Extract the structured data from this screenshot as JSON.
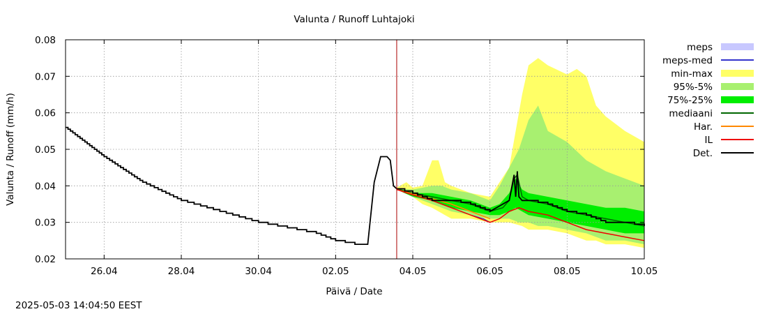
{
  "chart_data": {
    "type": "area",
    "title": "Valunta / Runoff  Luhtajoki",
    "xlabel": "Päivä / Date",
    "ylabel": "Valunta / Runoff (mm/h)",
    "x_range": [
      "2025-04-25T00:00",
      "2025-05-10T00:00"
    ],
    "ylim": [
      0.02,
      0.08
    ],
    "yticks": [
      "0.02",
      "0.03",
      "0.04",
      "0.05",
      "0.06",
      "0.07",
      "0.08"
    ],
    "xticks": [
      {
        "date": "2025-04-26",
        "label": "26.04"
      },
      {
        "date": "2025-04-28",
        "label": "28.04"
      },
      {
        "date": "2025-04-30",
        "label": "30.04"
      },
      {
        "date": "2025-05-02",
        "label": "02.05"
      },
      {
        "date": "2025-05-04",
        "label": "04.05"
      },
      {
        "date": "2025-05-06",
        "label": "06.05"
      },
      {
        "date": "2025-05-08",
        "label": "08.05"
      },
      {
        "date": "2025-05-10",
        "label": "10.05"
      }
    ],
    "grid": true,
    "legend_position": "right",
    "forecast_start": "2025-05-03T14:00",
    "legend": [
      {
        "label": "meps",
        "kind": "box",
        "color": "#c8c8ff"
      },
      {
        "label": "meps-med",
        "kind": "line",
        "color": "#3333cc"
      },
      {
        "label": "min-max",
        "kind": "box",
        "color": "#ffff66"
      },
      {
        "label": "95%-5%",
        "kind": "box",
        "color": "#a8f070"
      },
      {
        "label": "75%-25%",
        "kind": "box",
        "color": "#00ee00"
      },
      {
        "label": "mediaani",
        "kind": "line",
        "color": "#006600"
      },
      {
        "label": "Har.",
        "kind": "line",
        "color": "#ff8800"
      },
      {
        "label": "IL",
        "kind": "line",
        "color": "#ee0000"
      },
      {
        "label": "Det.",
        "kind": "line",
        "color": "#000000"
      }
    ],
    "bands": [
      {
        "name": "min-max",
        "color": "#ffff66",
        "x": [
          "2025-05-03T14:00",
          "2025-05-03T20:00",
          "2025-05-04T00:00",
          "2025-05-04T06:00",
          "2025-05-04T12:00",
          "2025-05-04T16:00",
          "2025-05-04T20:00",
          "2025-05-05T00:00",
          "2025-05-05T12:00",
          "2025-05-06T00:00",
          "2025-05-06T12:00",
          "2025-05-06T20:00",
          "2025-05-07T00:00",
          "2025-05-07T06:00",
          "2025-05-07T12:00",
          "2025-05-08T00:00",
          "2025-05-08T06:00",
          "2025-05-08T12:00",
          "2025-05-08T18:00",
          "2025-05-09T00:00",
          "2025-05-09T12:00",
          "2025-05-10T00:00"
        ],
        "upper": [
          0.0395,
          0.041,
          0.0395,
          0.04,
          0.047,
          0.047,
          0.041,
          0.04,
          0.038,
          0.037,
          0.045,
          0.065,
          0.073,
          0.075,
          0.073,
          0.0705,
          0.072,
          0.07,
          0.062,
          0.059,
          0.055,
          0.052
        ],
        "lower": [
          0.039,
          0.038,
          0.037,
          0.035,
          0.034,
          0.033,
          0.032,
          0.031,
          0.031,
          0.03,
          0.03,
          0.029,
          0.028,
          0.028,
          0.028,
          0.027,
          0.026,
          0.025,
          0.025,
          0.024,
          0.024,
          0.023
        ]
      },
      {
        "name": "95%-5%",
        "color": "#a8f070",
        "x": [
          "2025-05-03T14:00",
          "2025-05-04T00:00",
          "2025-05-04T12:00",
          "2025-05-04T18:00",
          "2025-05-05T00:00",
          "2025-05-05T12:00",
          "2025-05-06T00:00",
          "2025-05-06T06:00",
          "2025-05-06T12:00",
          "2025-05-06T18:00",
          "2025-05-07T00:00",
          "2025-05-07T06:00",
          "2025-05-07T12:00",
          "2025-05-08T00:00",
          "2025-05-08T12:00",
          "2025-05-09T00:00",
          "2025-05-09T12:00",
          "2025-05-10T00:00"
        ],
        "upper": [
          0.0393,
          0.039,
          0.04,
          0.04,
          0.039,
          0.038,
          0.036,
          0.04,
          0.045,
          0.05,
          0.058,
          0.062,
          0.055,
          0.052,
          0.047,
          0.044,
          0.042,
          0.04
        ],
        "lower": [
          0.039,
          0.037,
          0.035,
          0.034,
          0.033,
          0.032,
          0.031,
          0.031,
          0.031,
          0.03,
          0.03,
          0.029,
          0.029,
          0.028,
          0.027,
          0.025,
          0.025,
          0.024
        ]
      },
      {
        "name": "75%-25%",
        "color": "#00ee00",
        "x": [
          "2025-05-03T14:00",
          "2025-05-04T00:00",
          "2025-05-04T12:00",
          "2025-05-05T00:00",
          "2025-05-05T12:00",
          "2025-05-06T00:00",
          "2025-05-06T06:00",
          "2025-05-06T12:00",
          "2025-05-06T16:00",
          "2025-05-06T20:00",
          "2025-05-07T00:00",
          "2025-05-07T12:00",
          "2025-05-08T00:00",
          "2025-05-08T12:00",
          "2025-05-09T00:00",
          "2025-05-09T12:00",
          "2025-05-10T00:00"
        ],
        "upper": [
          0.0392,
          0.038,
          0.038,
          0.037,
          0.036,
          0.034,
          0.035,
          0.038,
          0.042,
          0.039,
          0.038,
          0.037,
          0.036,
          0.035,
          0.034,
          0.034,
          0.033
        ],
        "lower": [
          0.039,
          0.037,
          0.036,
          0.034,
          0.033,
          0.032,
          0.032,
          0.033,
          0.034,
          0.033,
          0.032,
          0.031,
          0.03,
          0.029,
          0.028,
          0.027,
          0.027
        ]
      }
    ],
    "series": [
      {
        "name": "meps-med",
        "color": "#3333cc",
        "width": 1.2,
        "x": [
          "2025-05-05T12:00",
          "2025-05-05T20:00",
          "2025-05-06T00:00"
        ],
        "y": [
          0.032,
          0.031,
          0.03
        ]
      },
      {
        "name": "mediaani",
        "color": "#006600",
        "width": 1.5,
        "x": [
          "2025-05-03T14:00",
          "2025-05-04T00:00",
          "2025-05-04T12:00",
          "2025-05-05T00:00",
          "2025-05-05T12:00",
          "2025-05-06T00:00",
          "2025-05-06T08:00",
          "2025-05-06T12:00",
          "2025-05-06T15:00",
          "2025-05-06T17:00",
          "2025-05-06T20:00",
          "2025-05-07T00:00",
          "2025-05-07T12:00",
          "2025-05-08T00:00",
          "2025-05-08T12:00",
          "2025-05-09T00:00",
          "2025-05-09T12:00",
          "2025-05-10T00:00"
        ],
        "y": [
          0.0392,
          0.038,
          0.037,
          0.036,
          0.035,
          0.033,
          0.034,
          0.036,
          0.042,
          0.043,
          0.037,
          0.036,
          0.035,
          0.033,
          0.032,
          0.031,
          0.03,
          0.029
        ]
      },
      {
        "name": "Har.",
        "color": "#ff8800",
        "width": 1.5,
        "x": [
          "2025-05-03T14:00",
          "2025-05-04T00:00",
          "2025-05-04T12:00",
          "2025-05-05T00:00",
          "2025-05-05T12:00",
          "2025-05-06T00:00"
        ],
        "y": [
          0.039,
          0.0378,
          0.0365,
          0.035,
          0.033,
          0.031
        ]
      },
      {
        "name": "IL",
        "color": "#ee0000",
        "width": 1.5,
        "x": [
          "2025-05-03T14:00",
          "2025-05-04T00:00",
          "2025-05-04T12:00",
          "2025-05-05T00:00",
          "2025-05-05T12:00",
          "2025-05-06T00:00",
          "2025-05-06T06:00",
          "2025-05-06T12:00",
          "2025-05-06T18:00",
          "2025-05-07T00:00",
          "2025-05-07T12:00",
          "2025-05-08T00:00",
          "2025-05-08T12:00",
          "2025-05-09T00:00",
          "2025-05-09T12:00",
          "2025-05-10T00:00"
        ],
        "y": [
          0.039,
          0.0375,
          0.036,
          0.034,
          0.032,
          0.03,
          0.031,
          0.033,
          0.034,
          0.033,
          0.032,
          0.03,
          0.028,
          0.027,
          0.026,
          0.025
        ]
      },
      {
        "name": "Det.",
        "color": "#000000",
        "width": 1.8,
        "step": true,
        "x": [
          "2025-04-25T00:00",
          "2025-04-26T00:00",
          "2025-04-27T00:00",
          "2025-04-28T00:00",
          "2025-04-29T00:00",
          "2025-04-30T00:00",
          "2025-05-01T00:00",
          "2025-05-01T12:00",
          "2025-05-02T00:00",
          "2025-05-02T12:00",
          "2025-05-02T20:00",
          "2025-05-03T00:00",
          "2025-05-03T04:00",
          "2025-05-03T08:00",
          "2025-05-03T10:00",
          "2025-05-03T12:00",
          "2025-05-03T14:00",
          "2025-05-04T00:00",
          "2025-05-04T12:00",
          "2025-05-05T00:00",
          "2025-05-05T12:00",
          "2025-05-06T00:00",
          "2025-05-06T08:00",
          "2025-05-06T12:00",
          "2025-05-06T15:00",
          "2025-05-06T16:00",
          "2025-05-06T17:00",
          "2025-05-06T18:00",
          "2025-05-06T20:00",
          "2025-05-07T00:00",
          "2025-05-07T12:00",
          "2025-05-08T00:00",
          "2025-05-08T12:00",
          "2025-05-09T00:00",
          "2025-05-09T12:00",
          "2025-05-10T00:00"
        ],
        "y": [
          0.056,
          0.048,
          0.041,
          0.036,
          0.033,
          0.03,
          0.028,
          0.027,
          0.025,
          0.024,
          0.024,
          0.041,
          0.048,
          0.048,
          0.047,
          0.04,
          0.0392,
          0.038,
          0.036,
          0.036,
          0.035,
          0.033,
          0.035,
          0.036,
          0.043,
          0.037,
          0.044,
          0.037,
          0.036,
          0.036,
          0.035,
          0.033,
          0.032,
          0.03,
          0.03,
          0.029
        ]
      }
    ]
  },
  "timestamp": "2025-05-03 14:04:50 EEST"
}
